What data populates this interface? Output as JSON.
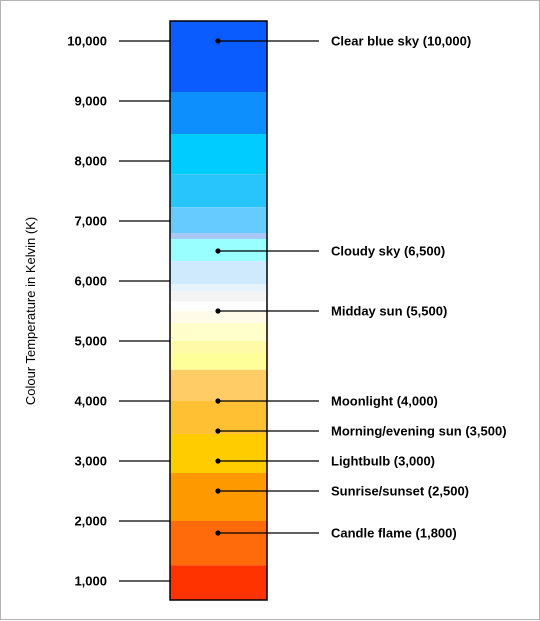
{
  "axis_title": "Colour Temperature in Kelvin (K)",
  "ticks": [
    {
      "value": 10000,
      "label": "10,000"
    },
    {
      "value": 9000,
      "label": "9,000"
    },
    {
      "value": 8000,
      "label": "8,000"
    },
    {
      "value": 7000,
      "label": "7,000"
    },
    {
      "value": 6000,
      "label": "6,000"
    },
    {
      "value": 5000,
      "label": "5,000"
    },
    {
      "value": 4000,
      "label": "4,000"
    },
    {
      "value": 3000,
      "label": "3,000"
    },
    {
      "value": 2000,
      "label": "2,000"
    },
    {
      "value": 1000,
      "label": "1,000"
    }
  ],
  "bands": [
    {
      "from": 9150,
      "to": 10330,
      "color": "#0b5cff"
    },
    {
      "from": 8450,
      "to": 9150,
      "color": "#0d8ffd"
    },
    {
      "from": 7780,
      "to": 8450,
      "color": "#00ccff"
    },
    {
      "from": 7230,
      "to": 7780,
      "color": "#28c5fc"
    },
    {
      "from": 6800,
      "to": 7230,
      "color": "#66ccff"
    },
    {
      "from": 6700,
      "to": 6800,
      "color": "#a9c8f5"
    },
    {
      "from": 6330,
      "to": 6700,
      "color": "#99ffff"
    },
    {
      "from": 5950,
      "to": 6330,
      "color": "#cfe9fd"
    },
    {
      "from": 5830,
      "to": 5950,
      "color": "#e8f2fb"
    },
    {
      "from": 5660,
      "to": 5830,
      "color": "#f4f4f4"
    },
    {
      "from": 5500,
      "to": 5660,
      "color": "#ffffff"
    },
    {
      "from": 5300,
      "to": 5500,
      "color": "#fffbe8"
    },
    {
      "from": 5000,
      "to": 5300,
      "color": "#ffffcc"
    },
    {
      "from": 4800,
      "to": 5000,
      "color": "#fffaa8"
    },
    {
      "from": 4520,
      "to": 4800,
      "color": "#ffff99"
    },
    {
      "from": 4000,
      "to": 4520,
      "color": "#ffcc66"
    },
    {
      "from": 3450,
      "to": 4000,
      "color": "#ffc133"
    },
    {
      "from": 2800,
      "to": 3450,
      "color": "#ffcc00"
    },
    {
      "from": 2000,
      "to": 2800,
      "color": "#fe9900"
    },
    {
      "from": 1260,
      "to": 2000,
      "color": "#ff6a0a"
    },
    {
      "from": 650,
      "to": 1260,
      "color": "#ff3300"
    }
  ],
  "annotations": [
    {
      "value": 10000,
      "label": "Clear blue sky (10,000)"
    },
    {
      "value": 6500,
      "label": "Cloudy sky (6,500)"
    },
    {
      "value": 5500,
      "label": "Midday sun (5,500)"
    },
    {
      "value": 4000,
      "label": "Moonlight (4,000)"
    },
    {
      "value": 3500,
      "label": "Morning/evening sun (3,500)"
    },
    {
      "value": 3000,
      "label": "Lightbulb (3,000)"
    },
    {
      "value": 2500,
      "label": "Sunrise/sunset (2,500)"
    },
    {
      "value": 1800,
      "label": "Candle flame (1,800)"
    }
  ],
  "colors": {
    "outline": "#000000",
    "frame": "#b3b3b3"
  }
}
